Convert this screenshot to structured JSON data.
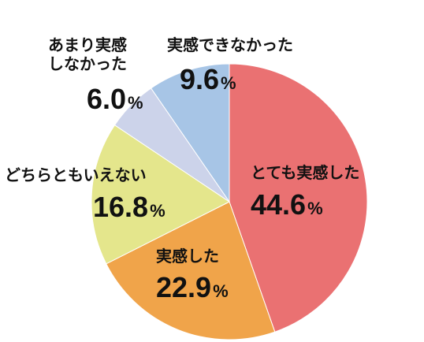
{
  "chart_data": {
    "type": "pie",
    "title": "",
    "start_angle_deg": 0,
    "direction": "clockwise",
    "slices": [
      {
        "name": "とても実感した",
        "lines": [
          "とても実感した"
        ],
        "value": 44.6,
        "label": "44.6",
        "unit": "%",
        "color": "#ea7172"
      },
      {
        "name": "実感した",
        "lines": [
          "実感した"
        ],
        "value": 22.9,
        "label": "22.9",
        "unit": "%",
        "color": "#f0a44a"
      },
      {
        "name": "どちらともいえない",
        "lines": [
          "どちらともいえない"
        ],
        "value": 16.8,
        "label": "16.8",
        "unit": "%",
        "color": "#e4e68c"
      },
      {
        "name": "あまり実感しなかった",
        "lines": [
          "あまり実感",
          "しなかった"
        ],
        "value": 6.0,
        "label": "6.0",
        "unit": "%",
        "color": "#ccd3ea"
      },
      {
        "name": "実感できなかった",
        "lines": [
          "実感できなかった"
        ],
        "value": 9.6,
        "label": "9.6",
        "unit": "%",
        "color": "#a7c5e6"
      }
    ]
  }
}
